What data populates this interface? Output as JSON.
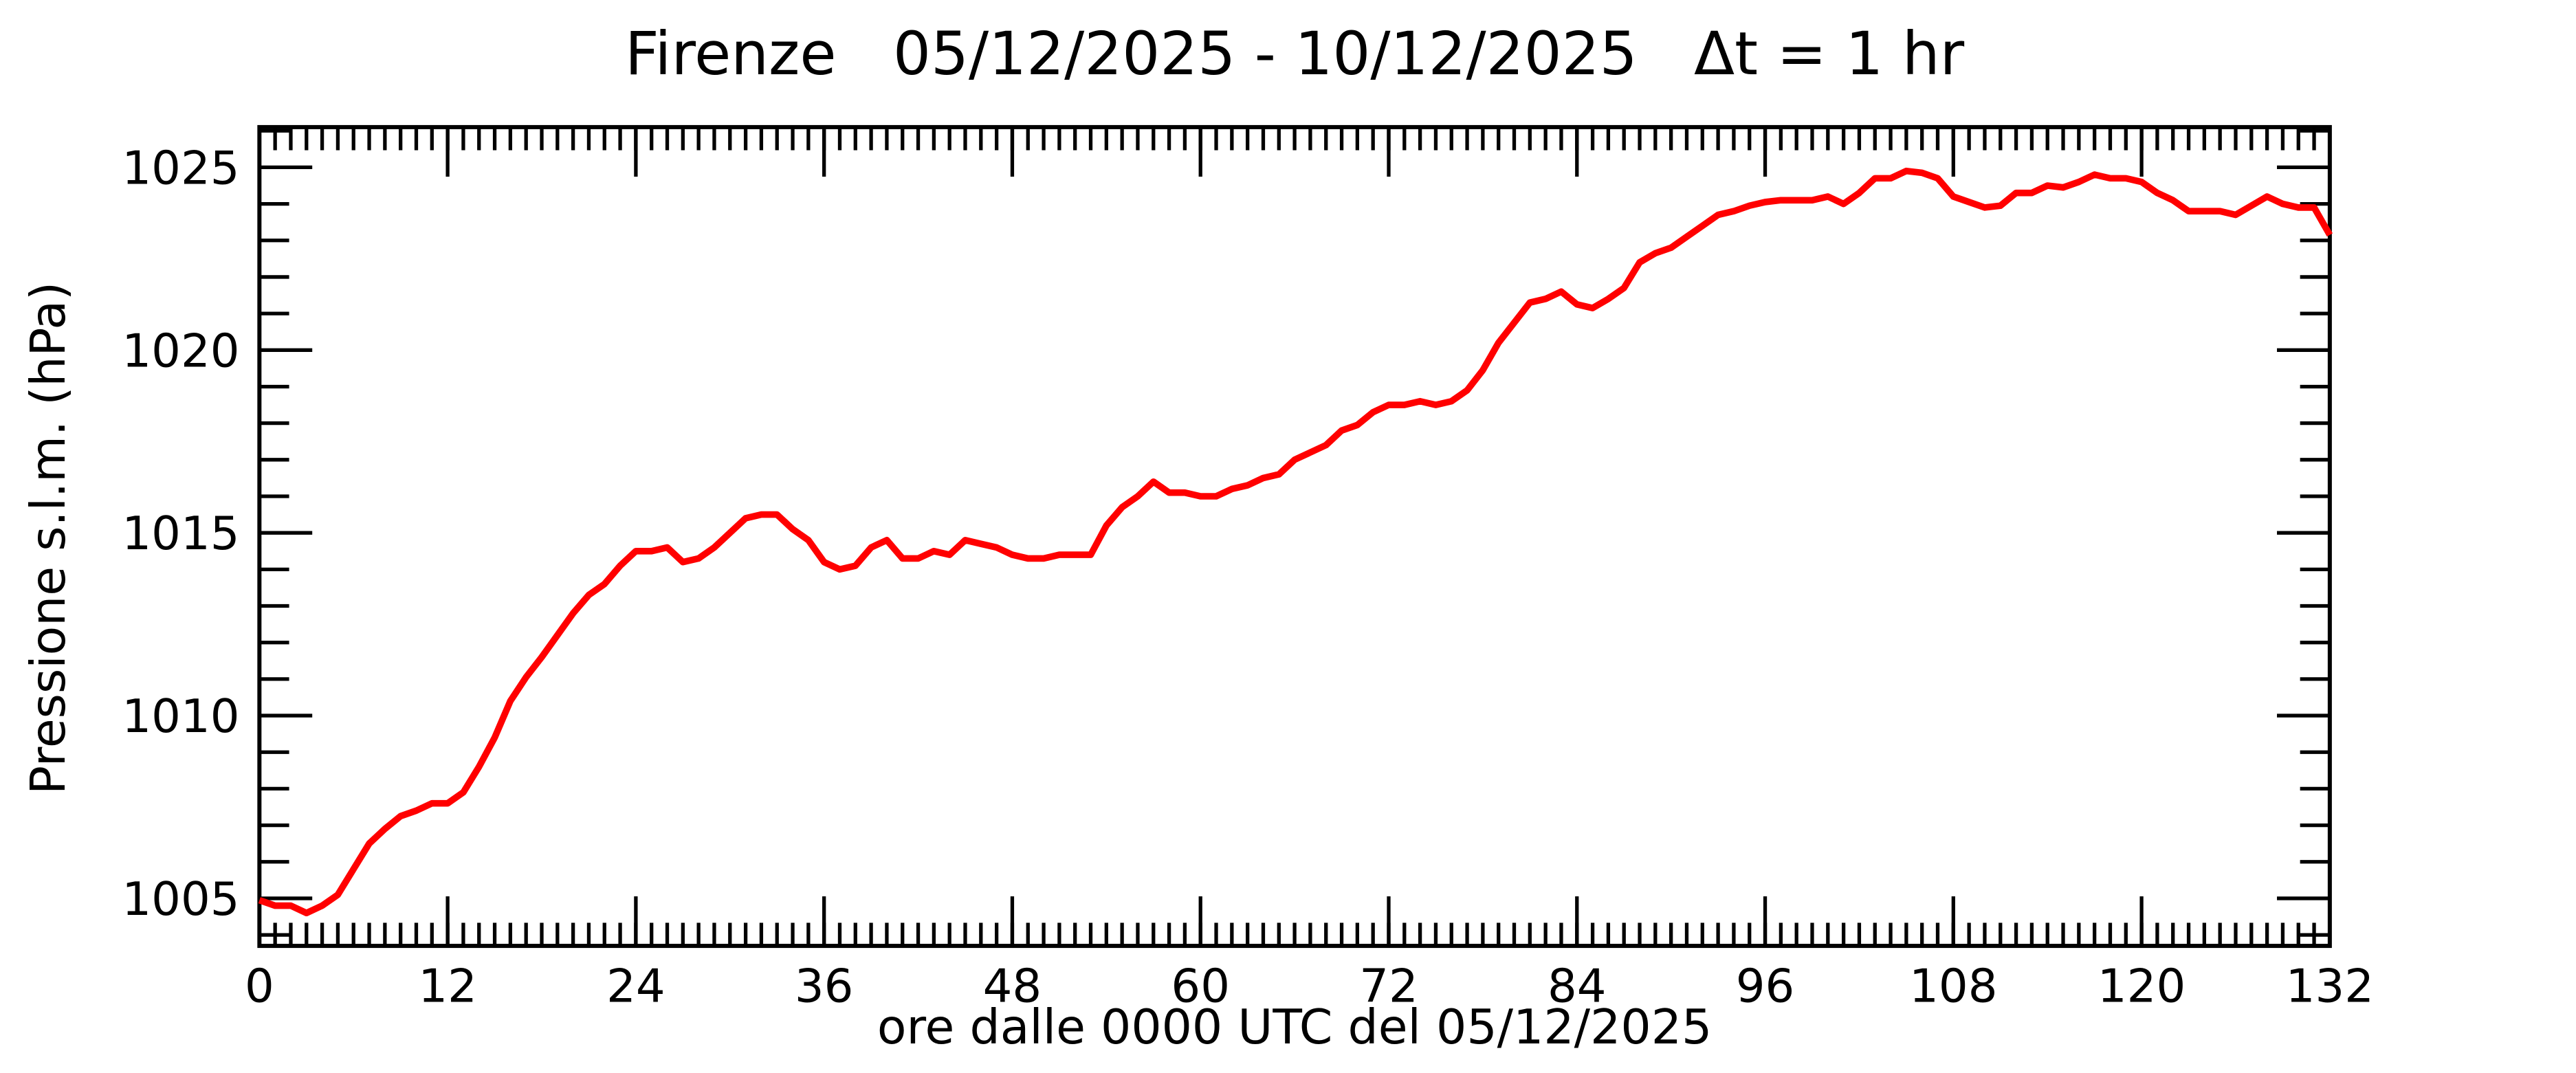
{
  "chart_data": {
    "type": "line",
    "title": "Firenze   05/12/2025 - 10/12/2025   Δt = 1 hr",
    "xlabel": "ore dalle 0000 UTC del 05/12/2025",
    "ylabel": "Pressione s.l.m. (hPa)",
    "color": "#ff0000",
    "x": [
      0,
      1,
      2,
      3,
      4,
      5,
      6,
      7,
      8,
      9,
      10,
      11,
      12,
      13,
      14,
      15,
      16,
      17,
      18,
      19,
      20,
      21,
      22,
      23,
      24,
      25,
      26,
      27,
      28,
      29,
      30,
      31,
      32,
      33,
      34,
      35,
      36,
      37,
      38,
      39,
      40,
      41,
      42,
      43,
      44,
      45,
      46,
      47,
      48,
      49,
      50,
      51,
      52,
      53,
      54,
      55,
      56,
      57,
      58,
      59,
      60,
      61,
      62,
      63,
      64,
      65,
      66,
      67,
      68,
      69,
      70,
      71,
      72,
      73,
      74,
      75,
      76,
      77,
      78,
      79,
      80,
      81,
      82,
      83,
      84,
      85,
      86,
      87,
      88,
      89,
      90,
      91,
      92,
      93,
      94,
      95,
      96,
      97,
      98,
      99,
      100,
      101,
      102,
      103,
      104,
      105,
      106,
      107,
      108,
      109,
      110,
      111,
      112,
      113,
      114,
      115,
      116,
      117,
      118,
      119,
      120,
      121,
      122,
      123,
      124,
      125,
      126,
      127,
      128,
      129,
      130,
      131,
      132
    ],
    "values": [
      1004.95,
      1004.8,
      1004.8,
      1004.6,
      1004.8,
      1005.1,
      1005.8,
      1006.5,
      1006.9,
      1007.25,
      1007.4,
      1007.6,
      1007.6,
      1007.9,
      1008.6,
      1009.4,
      1010.4,
      1011.05,
      1011.6,
      1012.2,
      1012.8,
      1013.3,
      1013.6,
      1014.1,
      1014.5,
      1014.5,
      1014.6,
      1014.2,
      1014.3,
      1014.6,
      1015.0,
      1015.4,
      1015.5,
      1015.5,
      1015.1,
      1014.8,
      1014.2,
      1014.0,
      1014.1,
      1014.6,
      1014.8,
      1014.3,
      1014.3,
      1014.5,
      1014.4,
      1014.8,
      1014.7,
      1014.6,
      1014.4,
      1014.3,
      1014.3,
      1014.4,
      1014.4,
      1014.4,
      1015.2,
      1015.7,
      1016.0,
      1016.4,
      1016.1,
      1016.1,
      1016.0,
      1016.0,
      1016.2,
      1016.3,
      1016.5,
      1016.6,
      1017.0,
      1017.2,
      1017.4,
      1017.8,
      1017.95,
      1018.3,
      1018.5,
      1018.5,
      1018.6,
      1018.5,
      1018.6,
      1018.9,
      1019.45,
      1020.2,
      1020.75,
      1021.3,
      1021.4,
      1021.6,
      1021.25,
      1021.15,
      1021.4,
      1021.7,
      1022.4,
      1022.65,
      1022.8,
      1023.1,
      1023.4,
      1023.7,
      1023.8,
      1023.95,
      1024.05,
      1024.1,
      1024.1,
      1024.1,
      1024.2,
      1024.0,
      1024.3,
      1024.7,
      1024.7,
      1024.9,
      1024.85,
      1024.7,
      1024.2,
      1024.05,
      1023.9,
      1023.95,
      1024.3,
      1024.3,
      1024.5,
      1024.45,
      1024.6,
      1024.8,
      1024.7,
      1024.7,
      1024.6,
      1024.3,
      1024.1,
      1023.8,
      1023.8,
      1023.8,
      1023.7,
      1023.95,
      1024.2,
      1024.0,
      1023.9,
      1023.9,
      1023.15
    ],
    "xlim": [
      0,
      132
    ],
    "xticks": [
      0,
      12,
      24,
      36,
      48,
      60,
      72,
      84,
      96,
      108,
      120,
      132
    ],
    "ylim": [
      1003.7,
      1026.1
    ],
    "yticks": [
      1005,
      1010,
      1015,
      1020,
      1025
    ],
    "yminorticks": [
      1004,
      1006,
      1007,
      1008,
      1009,
      1011,
      1012,
      1013,
      1014,
      1016,
      1017,
      1018,
      1019,
      1021,
      1022,
      1023,
      1024,
      1026
    ]
  }
}
